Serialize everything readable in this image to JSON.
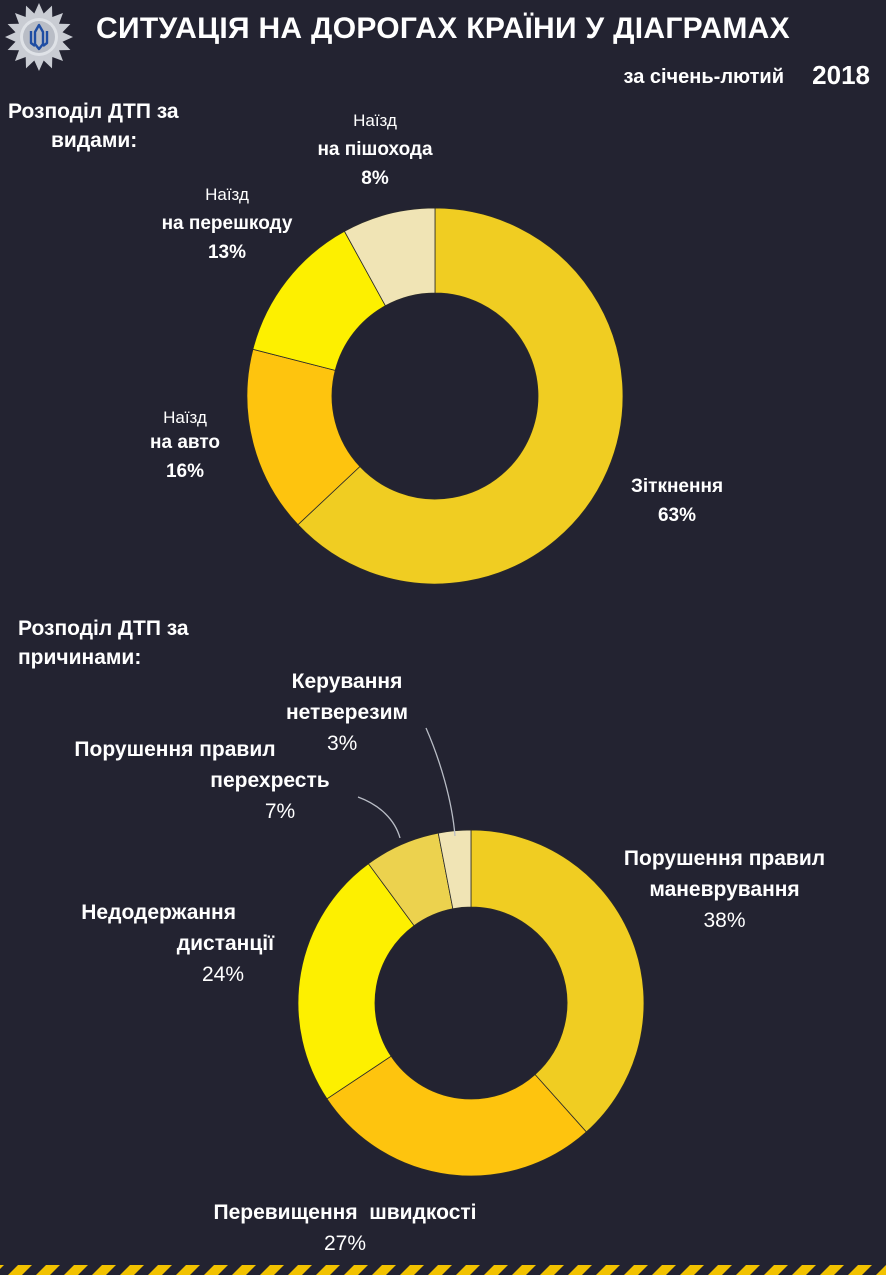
{
  "header": {
    "title": "СИТУАЦІЯ НА ДОРОГАХ КРАЇНИ У ДІАГРАМАХ",
    "period": "за січень-лютий",
    "year": "2018"
  },
  "colors": {
    "background": "#232331",
    "badge": "#c9ccd3",
    "emblem": "#1f4da3",
    "stripe_yellow": "#f2c200",
    "stripe_dark": "#232331"
  },
  "icons": {
    "badge": "police-star-badge-icon"
  },
  "section1": {
    "title_line1": "Розподіл ДТП за",
    "title_line2": "видами:"
  },
  "section2": {
    "title_line1": "Розподіл ДТП за",
    "title_line2": "причинами:"
  },
  "chart_data": [
    {
      "type": "pie",
      "donut": true,
      "series": [
        {
          "values": [
            63,
            16,
            13,
            8
          ]
        }
      ],
      "categories": [
        "Зіткнення",
        "Наїзд на авто",
        "Наїзд на перешкоду",
        "Наїзд на пішохода"
      ],
      "colors": [
        "#f0cd22",
        "#fec40e",
        "#fdf000",
        "#f0e4b5"
      ],
      "labels": [
        {
          "line1": "Зіткнення",
          "pct": "63%"
        },
        {
          "sub": "Наїзд",
          "line1": "на авто",
          "pct": "16%"
        },
        {
          "sub": "Наїзд",
          "line1": "на перешкоду",
          "pct": "13%"
        },
        {
          "sub": "Наїзд",
          "line1": "на пішохода",
          "pct": "8%"
        }
      ]
    },
    {
      "type": "pie",
      "donut": true,
      "series": [
        {
          "values": [
            38,
            27,
            24,
            7,
            3
          ]
        }
      ],
      "categories": [
        "Порушення правил маневрування",
        "Перевищення швидкості",
        "Недодержання дистанції",
        "Порушення правил перехресть",
        "Керування нетверезим"
      ],
      "colors": [
        "#f0cd22",
        "#fec40e",
        "#fdf000",
        "#ecd24e",
        "#f0e4b5"
      ],
      "labels": [
        {
          "line1": "Порушення правил",
          "line2": "маневрування",
          "pct": "38%"
        },
        {
          "line1": "Перевищення  швидкості",
          "pct": "27%"
        },
        {
          "line1": "Недодержання",
          "line2": "дистанції",
          "pct": "24%"
        },
        {
          "line1": "Порушення правил",
          "line2": "перехресть",
          "pct": "7%"
        },
        {
          "line1": "Керування",
          "line2": "нетверезим",
          "pct": "3%"
        }
      ]
    }
  ]
}
